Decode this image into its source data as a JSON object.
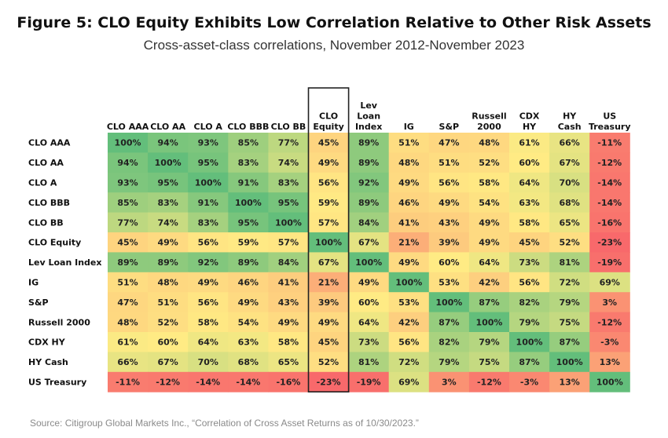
{
  "chart_data": {
    "type": "heatmap",
    "title": "Figure 5: CLO Equity Exhibits Low Correlation Relative to Other Risk Assets",
    "subtitle": "Cross-asset-class correlations, November 2012-November 2023",
    "source": "Source: Citigroup Global Markets Inc., “Correlation of Cross Asset Returns as of 10/30/2023.”",
    "columns": [
      [
        "CLO AAA"
      ],
      [
        "CLO AA"
      ],
      [
        "CLO A"
      ],
      [
        "CLO BBB"
      ],
      [
        "CLO BB"
      ],
      [
        "CLO",
        "Equity"
      ],
      [
        "Lev",
        "Loan",
        "Index"
      ],
      [
        "IG"
      ],
      [
        "S&P"
      ],
      [
        "Russell",
        "2000"
      ],
      [
        "CDX",
        "HY"
      ],
      [
        "HY",
        "Cash"
      ],
      [
        "US",
        "Treasury"
      ]
    ],
    "rows": [
      "CLO AAA",
      "CLO AA",
      "CLO A",
      "CLO BBB",
      "CLO BB",
      "CLO Equity",
      "Lev Loan Index",
      "IG",
      "S&P",
      "Russell 2000",
      "CDX HY",
      "HY Cash",
      "US Treasury"
    ],
    "highlighted_column": 5,
    "values": [
      [
        100,
        94,
        93,
        85,
        77,
        45,
        89,
        51,
        47,
        48,
        61,
        66,
        -11
      ],
      [
        94,
        100,
        95,
        83,
        74,
        49,
        89,
        48,
        51,
        52,
        60,
        67,
        -12
      ],
      [
        93,
        95,
        100,
        91,
        83,
        56,
        92,
        49,
        56,
        58,
        64,
        70,
        -14
      ],
      [
        85,
        83,
        91,
        100,
        95,
        59,
        89,
        46,
        49,
        54,
        63,
        68,
        -14
      ],
      [
        77,
        74,
        83,
        95,
        100,
        57,
        84,
        41,
        43,
        49,
        58,
        65,
        -16
      ],
      [
        45,
        49,
        56,
        59,
        57,
        100,
        67,
        21,
        39,
        49,
        45,
        52,
        -23
      ],
      [
        89,
        89,
        92,
        89,
        84,
        67,
        100,
        49,
        60,
        64,
        73,
        81,
        -19
      ],
      [
        51,
        48,
        49,
        46,
        41,
        21,
        49,
        100,
        53,
        42,
        56,
        72,
        69
      ],
      [
        47,
        51,
        56,
        49,
        43,
        39,
        60,
        53,
        100,
        87,
        82,
        79,
        3
      ],
      [
        48,
        52,
        58,
        54,
        49,
        49,
        64,
        42,
        87,
        100,
        79,
        75,
        -12
      ],
      [
        61,
        60,
        64,
        63,
        58,
        45,
        73,
        56,
        82,
        79,
        100,
        87,
        -3
      ],
      [
        66,
        67,
        70,
        68,
        65,
        52,
        81,
        72,
        79,
        75,
        87,
        100,
        13
      ],
      [
        -11,
        -12,
        -14,
        -14,
        -16,
        -23,
        -19,
        69,
        3,
        -12,
        -3,
        13,
        100
      ]
    ],
    "color_scale": {
      "low": "#f8696b",
      "mid": "#ffeb84",
      "high": "#63be7b"
    }
  }
}
